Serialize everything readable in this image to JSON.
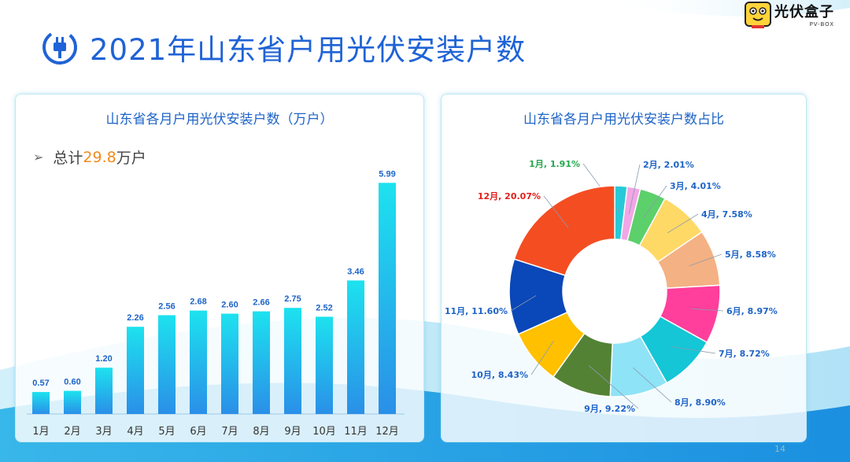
{
  "header": {
    "title": "2021年山东省户用光伏安装户数",
    "logo_name": "光伏盒子",
    "logo_sub": "PV-BOX",
    "page_number": "14"
  },
  "colors": {
    "title_blue": "#1f63d6",
    "label_blue": "#1e64c8",
    "total_orange": "#f28a1c"
  },
  "chart_data": [
    {
      "type": "bar",
      "title": "山东省各月户用光伏安装户数（万户）",
      "total_prefix": "总计",
      "total_value": "29.8",
      "total_unit": "万户",
      "categories": [
        "1月",
        "2月",
        "3月",
        "4月",
        "5月",
        "6月",
        "7月",
        "8月",
        "9月",
        "10月",
        "11月",
        "12月"
      ],
      "values": [
        0.57,
        0.6,
        1.2,
        2.26,
        2.56,
        2.68,
        2.6,
        2.66,
        2.75,
        2.52,
        3.46,
        5.99
      ],
      "value_labels": [
        "0.57",
        "0.60",
        "1.20",
        "2.26",
        "2.56",
        "2.68",
        "2.60",
        "2.66",
        "2.75",
        "2.52",
        "3.46",
        "5.99"
      ],
      "ylim": [
        0,
        6.2
      ],
      "grid": false
    },
    {
      "type": "pie",
      "variant": "donut",
      "title": "山东省各月户用光伏安装户数占比",
      "slices": [
        {
          "label": "1月, 1.91%",
          "value": 1.91,
          "color": "#27c9d8",
          "label_color": "#22a84a"
        },
        {
          "label": "2月, 2.01%",
          "value": 2.01,
          "color": "#f2a6e6",
          "label_color": "#1e64c8"
        },
        {
          "label": "3月, 4.01%",
          "value": 4.01,
          "color": "#5cd06a",
          "label_color": "#1e64c8"
        },
        {
          "label": "4月, 7.58%",
          "value": 7.58,
          "color": "#ffd966",
          "label_color": "#1e64c8"
        },
        {
          "label": "5月, 8.58%",
          "value": 8.58,
          "color": "#f4b183",
          "label_color": "#1e64c8"
        },
        {
          "label": "6月, 8.97%",
          "value": 8.97,
          "color": "#ff3f9b",
          "label_color": "#1e64c8"
        },
        {
          "label": "7月, 8.72%",
          "value": 8.72,
          "color": "#14c6d6",
          "label_color": "#1e64c8"
        },
        {
          "label": "8月, 8.90%",
          "value": 8.9,
          "color": "#8fe3f7",
          "label_color": "#1e64c8"
        },
        {
          "label": "9月, 9.22%",
          "value": 9.22,
          "color": "#548235",
          "label_color": "#1e64c8"
        },
        {
          "label": "10月, 8.43%",
          "value": 8.43,
          "color": "#ffc000",
          "label_color": "#1e64c8"
        },
        {
          "label": "11月, 11.60%",
          "value": 11.6,
          "color": "#0a47b8",
          "label_color": "#1e64c8"
        },
        {
          "label": "12月, 20.07%",
          "value": 20.07,
          "color": "#f54d22",
          "label_color": "#e0201b"
        }
      ]
    }
  ]
}
